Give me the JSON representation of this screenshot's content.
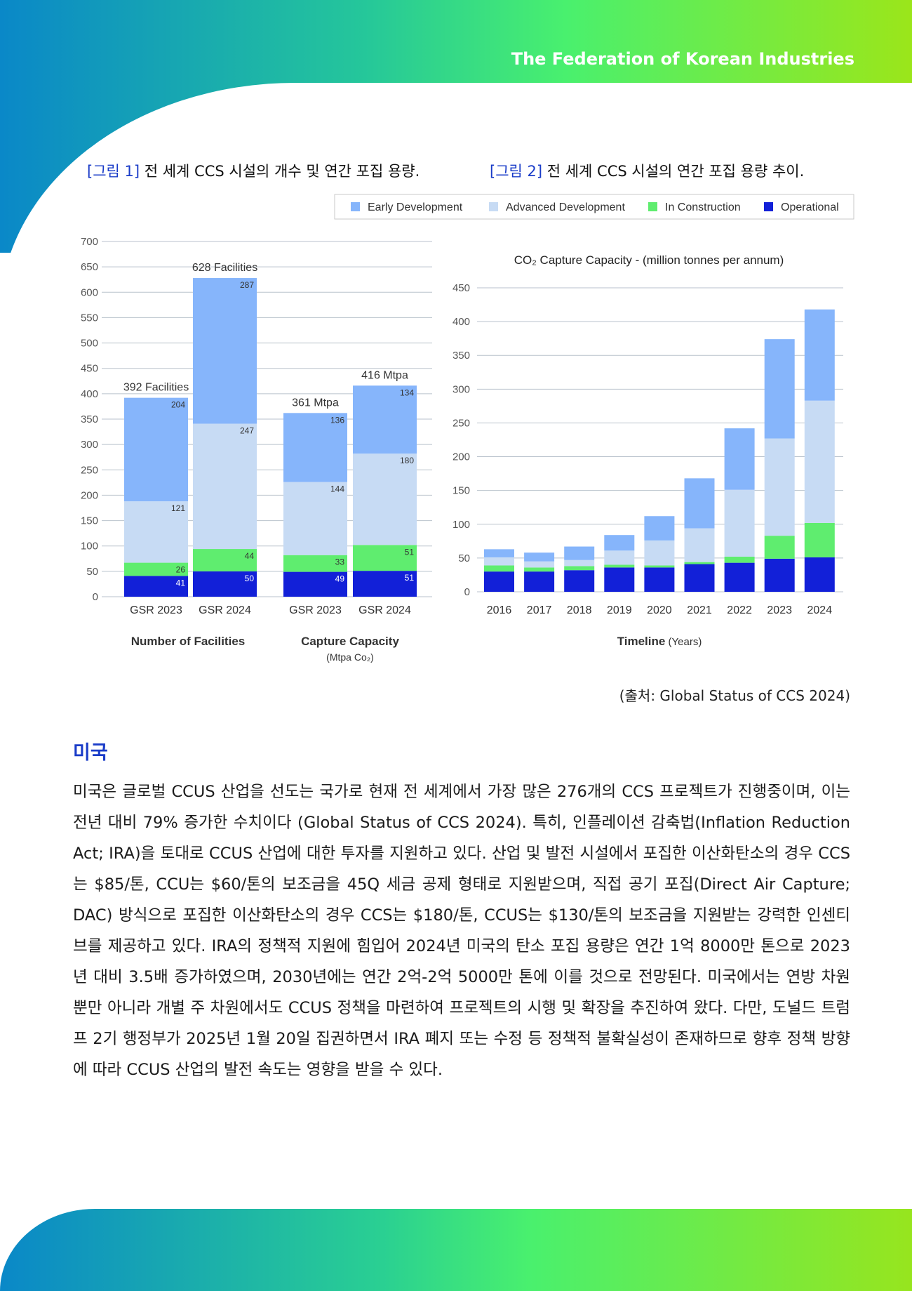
{
  "header": {
    "org": "The Federation of Korean Industries"
  },
  "figures": {
    "fig1_tag": "[그림 1]",
    "fig1_title": " 전 세계 CCS 시설의 개수 및 연간 포집 용량.",
    "fig2_tag": "[그림 2]",
    "fig2_title": " 전 세계 CCS 시설의 연간 포집 용량 추이."
  },
  "legend": [
    {
      "label": "Early Development",
      "color": "#86b5fb"
    },
    {
      "label": "Advanced Development",
      "color": "#c7dbf4"
    },
    {
      "label": "In Construction",
      "color": "#5fed6f"
    },
    {
      "label": "Operational",
      "color": "#1220d8"
    }
  ],
  "chart_data": [
    {
      "type": "bar",
      "stacked": true,
      "ylim": [
        0,
        700
      ],
      "yticks": [
        0,
        50,
        100,
        150,
        200,
        250,
        300,
        350,
        400,
        450,
        500,
        550,
        600,
        650,
        700
      ],
      "groups": [
        {
          "label": "Number of Facilities",
          "sublabel": "",
          "categories": [
            "GSR 2023",
            "GSR 2024"
          ],
          "totals_labels": [
            "392 Facilities",
            "628 Facilities"
          ],
          "series": [
            {
              "name": "Operational",
              "values": [
                41,
                50
              ]
            },
            {
              "name": "In Construction",
              "values": [
                26,
                44
              ]
            },
            {
              "name": "Advanced Development",
              "values": [
                121,
                247
              ]
            },
            {
              "name": "Early Development",
              "values": [
                204,
                287
              ]
            }
          ]
        },
        {
          "label": "Capture Capacity",
          "sublabel": "(Mtpa Co₂)",
          "categories": [
            "GSR 2023",
            "GSR 2024"
          ],
          "totals_labels": [
            "361 Mtpa",
            "416 Mtpa"
          ],
          "series": [
            {
              "name": "Operational",
              "values": [
                49,
                51
              ]
            },
            {
              "name": "In Construction",
              "values": [
                33,
                51
              ]
            },
            {
              "name": "Advanced Development",
              "values": [
                144,
                180
              ]
            },
            {
              "name": "Early Development",
              "values": [
                136,
                134
              ]
            }
          ]
        }
      ]
    },
    {
      "type": "bar",
      "stacked": true,
      "title": "CO₂ Capture Capacity - (million tonnes per annum)",
      "xlabel": "Timeline",
      "xlabel_suffix": " (Years)",
      "ylim": [
        0,
        450
      ],
      "yticks": [
        0,
        50,
        100,
        150,
        200,
        250,
        300,
        350,
        400,
        450
      ],
      "categories": [
        "2016",
        "2017",
        "2018",
        "2019",
        "2020",
        "2021",
        "2022",
        "2023",
        "2024"
      ],
      "series": [
        {
          "name": "Operational",
          "values": [
            30,
            30,
            32,
            36,
            36,
            41,
            43,
            49,
            51
          ]
        },
        {
          "name": "In Construction",
          "values": [
            9,
            6,
            6,
            4,
            3,
            3,
            9,
            34,
            51
          ]
        },
        {
          "name": "Advanced Development",
          "values": [
            12,
            9,
            9,
            21,
            37,
            50,
            99,
            144,
            181
          ]
        },
        {
          "name": "Early Development",
          "values": [
            12,
            13,
            20,
            23,
            36,
            74,
            91,
            147,
            135
          ]
        }
      ]
    }
  ],
  "source": "(출처: Global Status of CCS 2024)",
  "section": {
    "title": "미국",
    "body": " 미국은 글로벌 CCUS 산업을 선도는 국가로 현재 전 세계에서 가장 많은 276개의 CCS 프로젝트가 진행중이며, 이는 전년 대비 79% 증가한 수치이다 (Global Status of CCS 2024). 특히, 인플레이션 감축법(Inflation Reduction Act; IRA)을 토대로 CCUS 산업에 대한 투자를 지원하고 있다. 산업 및 발전 시설에서 포집한 이산화탄소의 경우 CCS는 $85/톤, CCU는 $60/톤의 보조금을 45Q 세금 공제 형태로 지원받으며, 직접 공기 포집(Direct Air Capture; DAC) 방식으로 포집한 이산화탄소의 경우 CCS는 $180/톤, CCUS는 $130/톤의 보조금을 지원받는 강력한 인센티브를 제공하고 있다. IRA의 정책적 지원에 힘입어 2024년 미국의 탄소 포집 용량은 연간 1억 8000만 톤으로 2023년 대비 3.5배 증가하였으며, 2030년에는 연간 2억-2억 5000만 톤에 이를 것으로 전망된다. 미국에서는 연방 차원 뿐만 아니라 개별 주 차원에서도 CCUS 정책을 마련하여 프로젝트의 시행 및 확장을 추진하여 왔다. 다만, 도널드 트럼프 2기 행정부가 2025년 1월 20일 집권하면서 IRA 폐지 또는 수정 등 정책적 불확실성이 존재하므로 향후 정책 방향에 따라 CCUS 산업의 발전 속도는 영향을 받을 수 있다."
  }
}
